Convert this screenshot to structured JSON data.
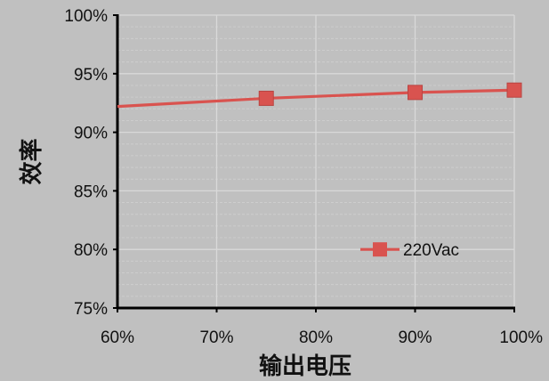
{
  "chart_data": {
    "type": "line",
    "title": "",
    "xlabel": "输出电压",
    "ylabel": "效率",
    "x_ticks": [
      "60%",
      "70%",
      "80%",
      "90%",
      "100%"
    ],
    "y_ticks": [
      "75%",
      "80%",
      "85%",
      "90%",
      "95%",
      "100%"
    ],
    "xlim": [
      60,
      100
    ],
    "ylim": [
      75,
      100
    ],
    "grid": true,
    "legend": "inside lower-right",
    "series": [
      {
        "name": "220Vac",
        "color": "#d9534f",
        "marker": "square",
        "x": [
          60,
          75,
          90,
          100
        ],
        "y": [
          92.2,
          92.9,
          93.4,
          93.6
        ],
        "marked_points": [
          75,
          90,
          100
        ]
      }
    ]
  },
  "colors": {
    "outer_background": "#c0c0c0",
    "plot_background": "#c0c0c0",
    "grid_major": "#d9d9d9",
    "grid_minor": "#cdcdcd",
    "axis": "#000000"
  }
}
